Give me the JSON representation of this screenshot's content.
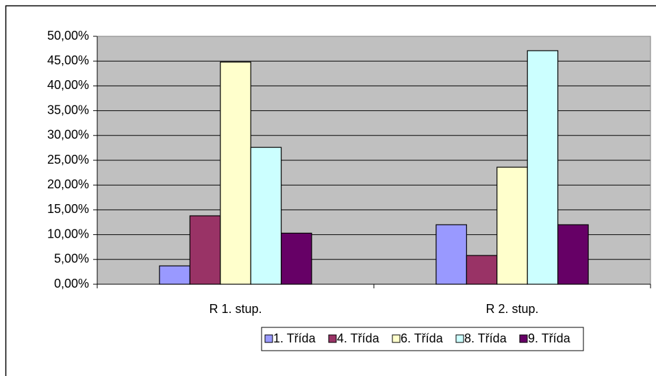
{
  "chart_data": {
    "type": "bar",
    "categories": [
      "R 1. stup.",
      "R 2. stup."
    ],
    "series": [
      {
        "name": "1. Třída",
        "color": "#9999ff",
        "values": [
          3.7,
          12.0
        ]
      },
      {
        "name": "4. Třída",
        "color": "#993366",
        "values": [
          13.8,
          5.8
        ]
      },
      {
        "name": "6. Třída",
        "color": "#ffffcc",
        "values": [
          44.8,
          23.6
        ]
      },
      {
        "name": "8. Třída",
        "color": "#ccffff",
        "values": [
          27.6,
          47.1
        ]
      },
      {
        "name": "9. Třída",
        "color": "#660066",
        "values": [
          10.3,
          12.0
        ]
      }
    ],
    "ylim": [
      0,
      50
    ],
    "yticks": [
      {
        "value": 0,
        "label": "0,00%"
      },
      {
        "value": 5,
        "label": "5,00%"
      },
      {
        "value": 10,
        "label": "10,00%"
      },
      {
        "value": 15,
        "label": "15,00%"
      },
      {
        "value": 20,
        "label": "20,00%"
      },
      {
        "value": 25,
        "label": "25,00%"
      },
      {
        "value": 30,
        "label": "30,00%"
      },
      {
        "value": 35,
        "label": "35,00%"
      },
      {
        "value": 40,
        "label": "40,00%"
      },
      {
        "value": 45,
        "label": "45,00%"
      },
      {
        "value": 50,
        "label": "50,00%"
      }
    ],
    "grid": true,
    "plot_background": "#c0c0c0",
    "legend": "bottom"
  }
}
